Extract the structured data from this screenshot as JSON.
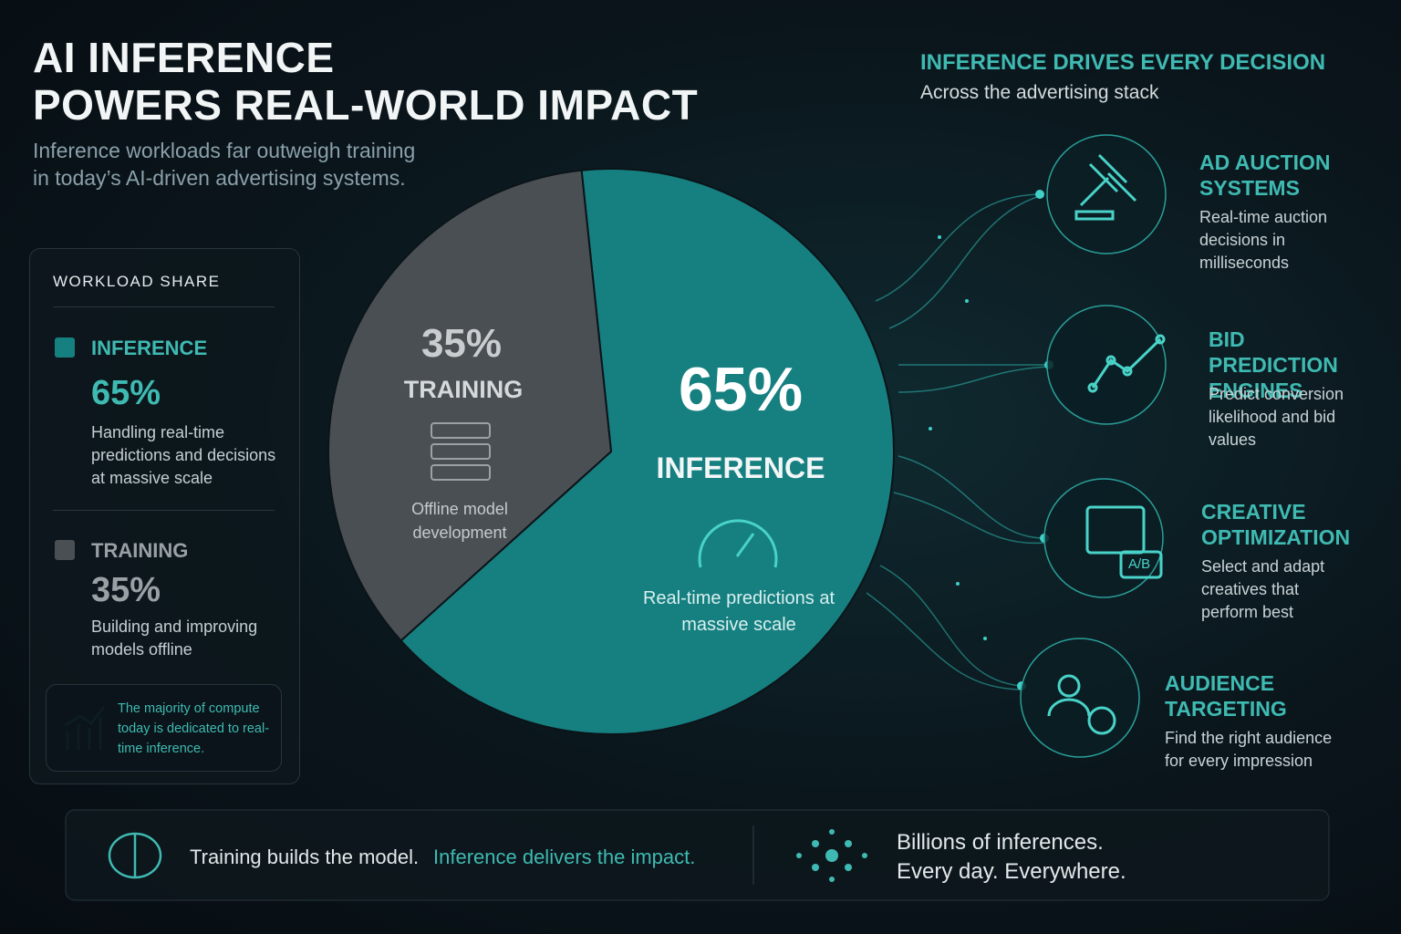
{
  "header": {
    "title": [
      "AI INFERENCE",
      "POWERS REAL-WORLD IMPACT"
    ],
    "subtitle": [
      "Inference workloads far outweigh training",
      "in today’s AI-driven advertising systems."
    ]
  },
  "chart_data": {
    "type": "pie",
    "categories": [
      "INFERENCE",
      "TRAINING"
    ],
    "values": [
      65,
      35
    ],
    "value_labels": [
      "65%",
      "35%"
    ],
    "colors": [
      "#167f80",
      "#4a4f54"
    ],
    "slice_notes": [
      "Real-time predictions at massive scale",
      "Offline model development"
    ],
    "legend_title": "WORKLOAD SHARE",
    "legend_notes": [
      "Handling real-time predictions and decisions at massive scale",
      "Building and improving models offline"
    ],
    "callout": "The majority of compute today is dedicated to real-time inference."
  },
  "applications": {
    "title": "INFERENCE DRIVES EVERY DECISION",
    "subtitle": "Across the advertising stack",
    "items": [
      {
        "title": "AD AUCTION SYSTEMS",
        "text": "Real-time auction decisions in milliseconds"
      },
      {
        "title": "BID PREDICTION ENGINES",
        "text": "Predict conversion likelihood and bid values"
      },
      {
        "title": "CREATIVE OPTIMIZATION",
        "text": "Select and adapt creatives that perform best",
        "icon_text": "A/B"
      },
      {
        "title": "AUDIENCE TARGETING",
        "text": "Find the right audience for every impression"
      }
    ]
  },
  "footer": {
    "left": [
      "Training builds the model.",
      "Inference delivers the impact."
    ],
    "right": [
      "Billions of inferences.",
      "Every day. Everywhere."
    ]
  }
}
